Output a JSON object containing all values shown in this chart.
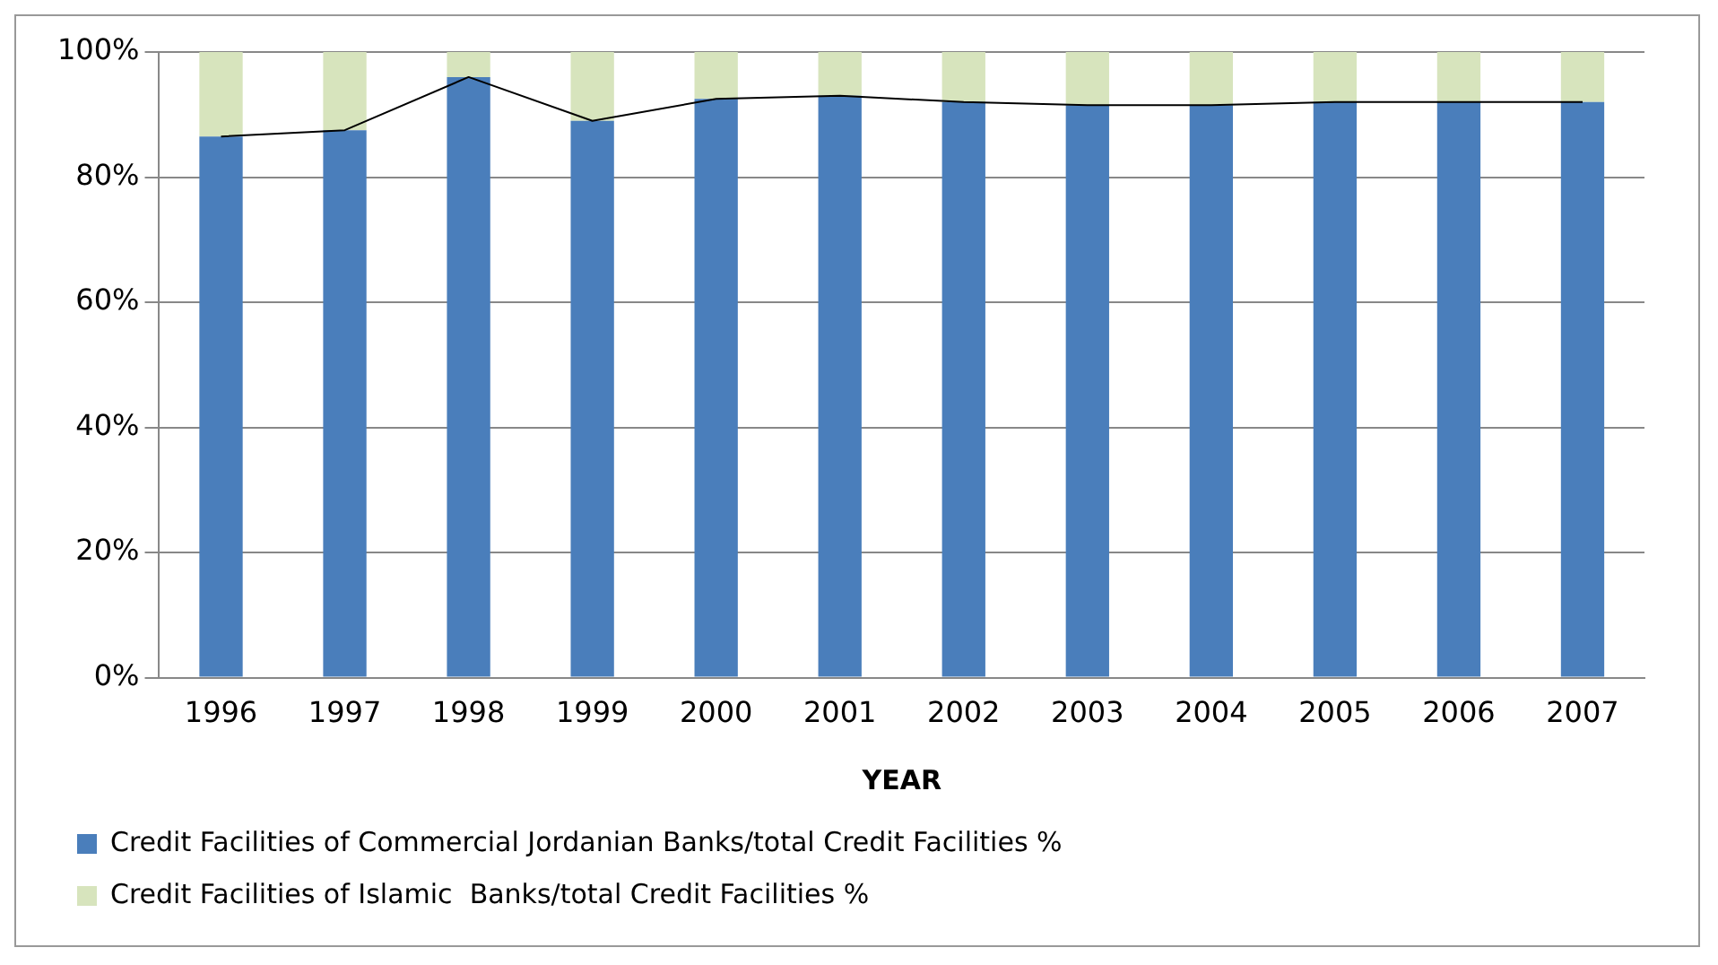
{
  "chart_data": {
    "type": "bar",
    "stacked": true,
    "xlabel": "YEAR",
    "categories": [
      "1996",
      "1997",
      "1998",
      "1999",
      "2000",
      "2001",
      "2002",
      "2003",
      "2004",
      "2005",
      "2006",
      "2007"
    ],
    "series": [
      {
        "name": "Credit Facilities of Commercial Jordanian Banks/total Credit Facilities %",
        "color": "#4a7ebb",
        "values": [
          86.5,
          87.5,
          96,
          89,
          92.5,
          93,
          92,
          91.5,
          91.5,
          92,
          92,
          92
        ]
      },
      {
        "name": "Credit Facilities of Islamic  Banks/total Credit Facilities %",
        "color": "#d7e4bd",
        "values": [
          13.5,
          12.5,
          4,
          11,
          7.5,
          7,
          8,
          8.5,
          8.5,
          8,
          8,
          8
        ]
      },
      {
        "type": "line",
        "color": "#000000",
        "values": [
          86.5,
          87.5,
          96,
          89,
          92.5,
          93,
          92,
          91.5,
          91.5,
          92,
          92,
          92
        ]
      }
    ],
    "ylim": [
      0,
      100
    ],
    "yticks": [
      {
        "value": 0,
        "label": "0%"
      },
      {
        "value": 20,
        "label": "20%"
      },
      {
        "value": 40,
        "label": "40%"
      },
      {
        "value": 60,
        "label": "60%"
      },
      {
        "value": 80,
        "label": "80%"
      },
      {
        "value": 100,
        "label": "100%"
      }
    ],
    "grid": "y",
    "legend": "bottom",
    "marker": "none"
  }
}
